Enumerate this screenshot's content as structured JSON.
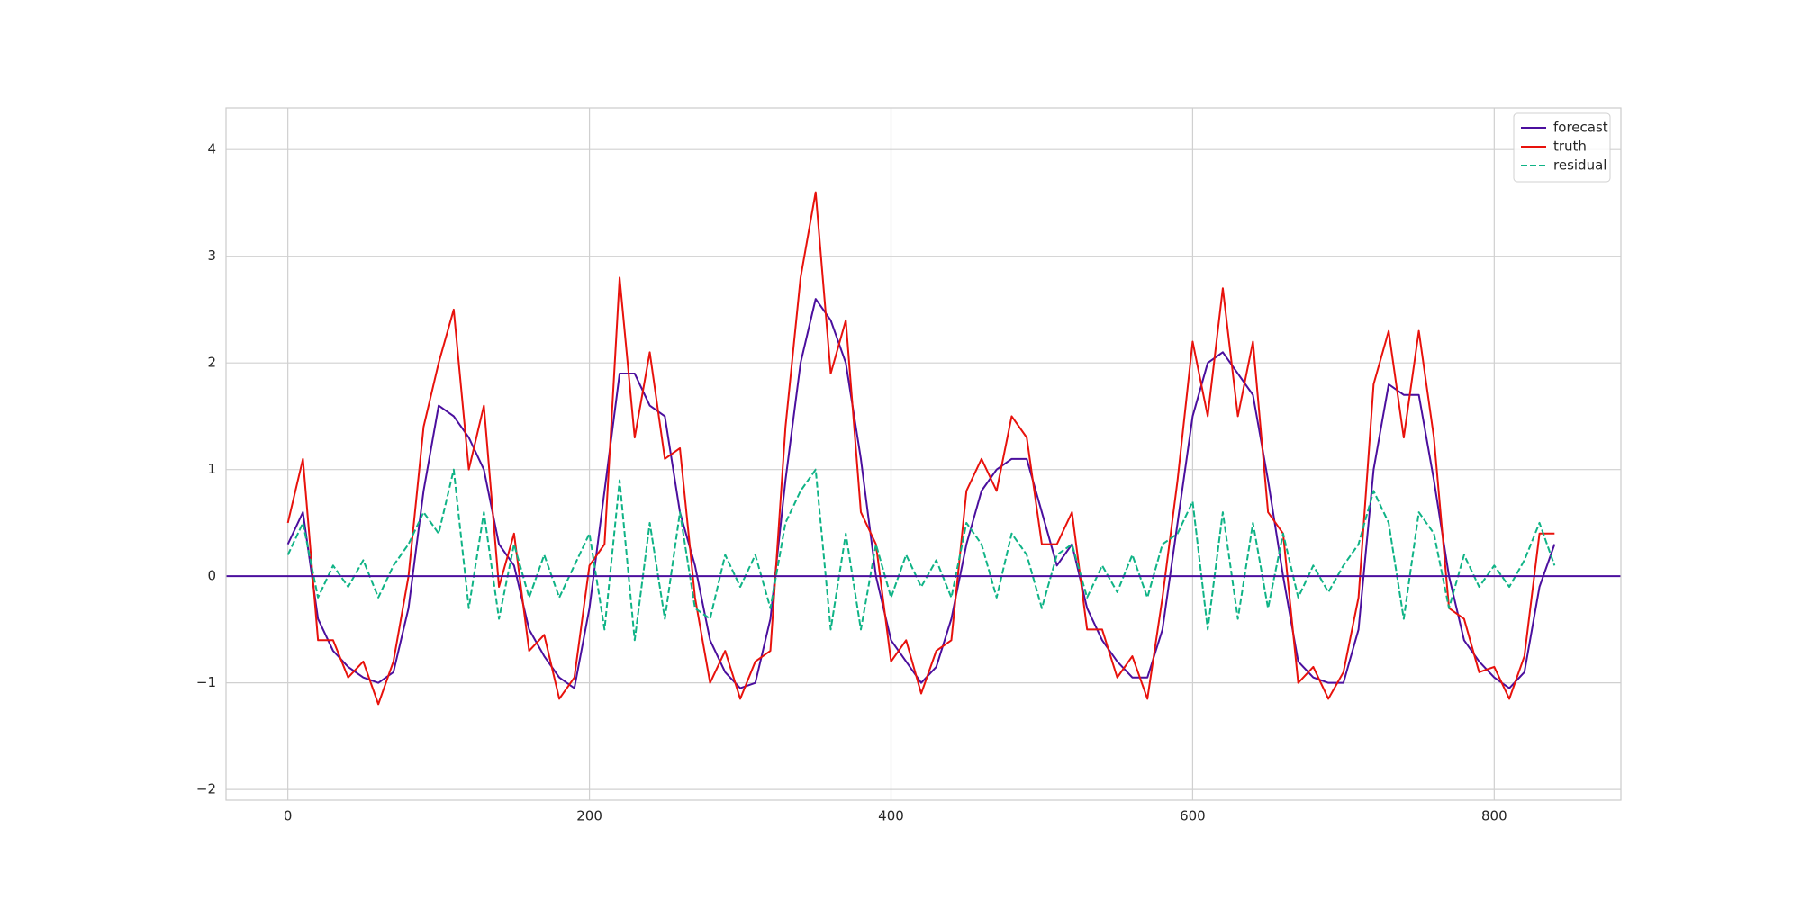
{
  "chart_data": {
    "type": "line",
    "x": [
      0,
      10,
      20,
      30,
      40,
      50,
      60,
      70,
      80,
      90,
      100,
      110,
      120,
      130,
      140,
      150,
      160,
      170,
      180,
      190,
      200,
      210,
      220,
      230,
      240,
      250,
      260,
      270,
      280,
      290,
      300,
      310,
      320,
      330,
      340,
      350,
      360,
      370,
      380,
      390,
      400,
      410,
      420,
      430,
      440,
      450,
      460,
      470,
      480,
      490,
      500,
      510,
      520,
      530,
      540,
      550,
      560,
      570,
      580,
      590,
      600,
      610,
      620,
      630,
      640,
      650,
      660,
      670,
      680,
      690,
      700,
      710,
      720,
      730,
      740,
      750,
      760,
      770,
      780,
      790,
      800,
      810,
      820,
      830,
      840
    ],
    "series": [
      {
        "name": "forecast",
        "color": "#4b0f9e",
        "dash": false,
        "values": [
          0.3,
          0.6,
          -0.4,
          -0.7,
          -0.85,
          -0.95,
          -1.0,
          -0.9,
          -0.3,
          0.8,
          1.6,
          1.5,
          1.3,
          1.0,
          0.3,
          0.1,
          -0.5,
          -0.75,
          -0.95,
          -1.05,
          -0.3,
          0.8,
          1.9,
          1.9,
          1.6,
          1.5,
          0.6,
          0.1,
          -0.6,
          -0.9,
          -1.05,
          -1.0,
          -0.4,
          0.9,
          2.0,
          2.6,
          2.4,
          2.0,
          1.1,
          0.0,
          -0.6,
          -0.8,
          -1.0,
          -0.85,
          -0.4,
          0.3,
          0.8,
          1.0,
          1.1,
          1.1,
          0.6,
          0.1,
          0.3,
          -0.3,
          -0.6,
          -0.8,
          -0.95,
          -0.95,
          -0.5,
          0.5,
          1.5,
          2.0,
          2.1,
          1.9,
          1.7,
          0.9,
          0.0,
          -0.8,
          -0.95,
          -1.0,
          -1.0,
          -0.5,
          1.0,
          1.8,
          1.7,
          1.7,
          0.9,
          0.0,
          -0.6,
          -0.8,
          -0.95,
          -1.05,
          -0.9,
          -0.1,
          0.3
        ]
      },
      {
        "name": "truth",
        "color": "#e8120c",
        "dash": false,
        "values": [
          0.5,
          1.1,
          -0.6,
          -0.6,
          -0.95,
          -0.8,
          -1.2,
          -0.8,
          0.0,
          1.4,
          2.0,
          2.5,
          1.0,
          1.6,
          -0.1,
          0.4,
          -0.7,
          -0.55,
          -1.15,
          -0.95,
          0.1,
          0.3,
          2.8,
          1.3,
          2.1,
          1.1,
          1.2,
          -0.2,
          -1.0,
          -0.7,
          -1.15,
          -0.8,
          -0.7,
          1.4,
          2.8,
          3.6,
          1.9,
          2.4,
          0.6,
          0.3,
          -0.8,
          -0.6,
          -1.1,
          -0.7,
          -0.6,
          0.8,
          1.1,
          0.8,
          1.5,
          1.3,
          0.3,
          0.3,
          0.6,
          -0.5,
          -0.5,
          -0.95,
          -0.75,
          -1.15,
          -0.2,
          0.9,
          2.2,
          1.5,
          2.7,
          1.5,
          2.2,
          0.6,
          0.4,
          -1.0,
          -0.85,
          -1.15,
          -0.9,
          -0.2,
          1.8,
          2.3,
          1.3,
          2.3,
          1.3,
          -0.3,
          -0.4,
          -0.9,
          -0.85,
          -1.15,
          -0.75,
          0.4,
          0.4
        ]
      },
      {
        "name": "residual",
        "color": "#0fb386",
        "dash": true,
        "values": [
          0.2,
          0.5,
          -0.2,
          0.1,
          -0.1,
          0.15,
          -0.2,
          0.1,
          0.3,
          0.6,
          0.4,
          1.0,
          -0.3,
          0.6,
          -0.4,
          0.3,
          -0.2,
          0.2,
          -0.2,
          0.1,
          0.4,
          -0.5,
          0.9,
          -0.6,
          0.5,
          -0.4,
          0.6,
          -0.3,
          -0.4,
          0.2,
          -0.1,
          0.2,
          -0.3,
          0.5,
          0.8,
          1.0,
          -0.5,
          0.4,
          -0.5,
          0.3,
          -0.2,
          0.2,
          -0.1,
          0.15,
          -0.2,
          0.5,
          0.3,
          -0.2,
          0.4,
          0.2,
          -0.3,
          0.2,
          0.3,
          -0.2,
          0.1,
          -0.15,
          0.2,
          -0.2,
          0.3,
          0.4,
          0.7,
          -0.5,
          0.6,
          -0.4,
          0.5,
          -0.3,
          0.4,
          -0.2,
          0.1,
          -0.15,
          0.1,
          0.3,
          0.8,
          0.5,
          -0.4,
          0.6,
          0.4,
          -0.3,
          0.2,
          -0.1,
          0.1,
          -0.1,
          0.15,
          0.5,
          0.1
        ]
      }
    ],
    "hlines": [
      {
        "y": 0,
        "color": "#4b0f9e"
      }
    ],
    "xlim": [
      -41,
      884
    ],
    "ylim": [
      -2.1,
      4.39
    ],
    "xticks": [
      0,
      200,
      400,
      600,
      800
    ],
    "yticks": [
      {
        "value": -2,
        "label": "−2"
      },
      {
        "value": -1,
        "label": "−1"
      },
      0,
      1,
      2,
      3,
      4
    ],
    "grid": true,
    "legend": "upper right"
  }
}
